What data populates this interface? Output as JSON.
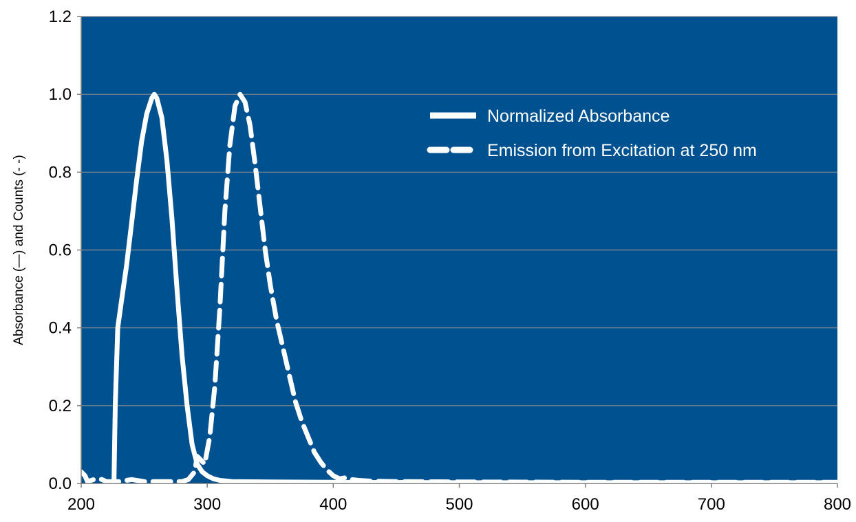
{
  "chart_data": {
    "type": "line",
    "title": "",
    "xlabel": "",
    "ylabel": "Absorbance (—) and Counts (- -)",
    "xlim": [
      200,
      800
    ],
    "ylim": [
      0,
      1.2
    ],
    "x_ticks": [
      "200",
      "300",
      "400",
      "500",
      "600",
      "700",
      "800"
    ],
    "y_ticks": [
      "0.0",
      "0.2",
      "0.4",
      "0.6",
      "0.8",
      "1.0",
      "1.2"
    ],
    "grid": true,
    "plot_background": "#00518F",
    "legend_position": "top-right",
    "series": [
      {
        "name": "Normalized Absorbance",
        "style": "solid",
        "color": "#FFFFFF",
        "points": [
          [
            226,
            0
          ],
          [
            227,
            0.2
          ],
          [
            229,
            0.4
          ],
          [
            232,
            0.47
          ],
          [
            236,
            0.56
          ],
          [
            240,
            0.67
          ],
          [
            244,
            0.78
          ],
          [
            248,
            0.88
          ],
          [
            252,
            0.95
          ],
          [
            256,
            0.99
          ],
          [
            258,
            1.0
          ],
          [
            260,
            0.99
          ],
          [
            264,
            0.94
          ],
          [
            268,
            0.83
          ],
          [
            272,
            0.68
          ],
          [
            276,
            0.5
          ],
          [
            280,
            0.33
          ],
          [
            284,
            0.2
          ],
          [
            288,
            0.1
          ],
          [
            292,
            0.05
          ],
          [
            296,
            0.03
          ],
          [
            300,
            0.02
          ],
          [
            305,
            0.012
          ],
          [
            310,
            0.008
          ],
          [
            320,
            0.005
          ],
          [
            350,
            0.004
          ],
          [
            400,
            0.003
          ],
          [
            500,
            0.002
          ],
          [
            600,
            0.002
          ],
          [
            700,
            0.002
          ],
          [
            800,
            0.002
          ]
        ]
      },
      {
        "name": "Emission from Excitation at 250 nm",
        "style": "dashed",
        "color": "#FFFFFF",
        "points": [
          [
            200,
            0.03
          ],
          [
            203,
            0.02
          ],
          [
            205,
            0.005
          ],
          [
            210,
            0.01
          ],
          [
            215,
            0.012
          ],
          [
            220,
            0.005
          ],
          [
            230,
            0.005
          ],
          [
            240,
            0.01
          ],
          [
            250,
            0.005
          ],
          [
            260,
            0.005
          ],
          [
            270,
            0.005
          ],
          [
            280,
            0.005
          ],
          [
            285,
            0.01
          ],
          [
            290,
            0.03
          ],
          [
            292,
            0.07
          ],
          [
            295,
            0.06
          ],
          [
            298,
            0.05
          ],
          [
            302,
            0.12
          ],
          [
            306,
            0.25
          ],
          [
            310,
            0.45
          ],
          [
            314,
            0.7
          ],
          [
            318,
            0.87
          ],
          [
            322,
            0.97
          ],
          [
            326,
            1.0
          ],
          [
            330,
            0.98
          ],
          [
            334,
            0.92
          ],
          [
            338,
            0.82
          ],
          [
            342,
            0.71
          ],
          [
            346,
            0.6
          ],
          [
            350,
            0.51
          ],
          [
            355,
            0.42
          ],
          [
            360,
            0.35
          ],
          [
            365,
            0.28
          ],
          [
            370,
            0.21
          ],
          [
            375,
            0.16
          ],
          [
            380,
            0.12
          ],
          [
            385,
            0.08
          ],
          [
            390,
            0.055
          ],
          [
            395,
            0.035
          ],
          [
            400,
            0.02
          ],
          [
            405,
            0.012
          ],
          [
            410,
            0.015
          ],
          [
            415,
            0.01
          ],
          [
            420,
            0.008
          ],
          [
            430,
            0.006
          ],
          [
            450,
            0.005
          ],
          [
            500,
            0.004
          ],
          [
            600,
            0.003
          ],
          [
            700,
            0.003
          ],
          [
            800,
            0.003
          ]
        ]
      }
    ]
  }
}
